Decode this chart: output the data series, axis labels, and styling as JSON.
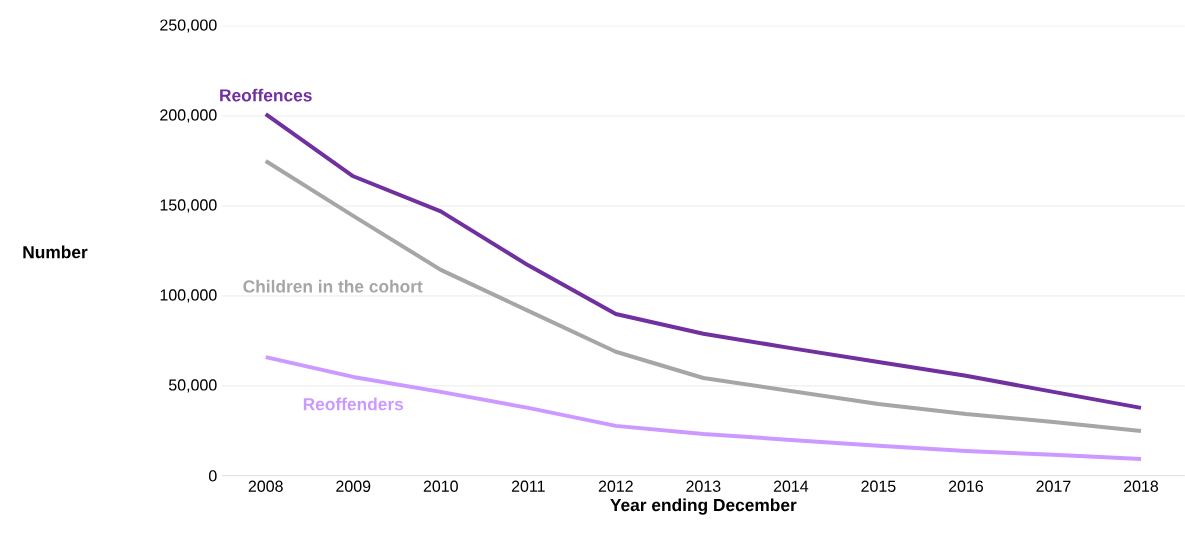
{
  "chart_data": {
    "type": "line",
    "xlabel": "Year ending December",
    "ylabel": "Number",
    "categories": [
      "2008",
      "2009",
      "2010",
      "2011",
      "2012",
      "2013",
      "2014",
      "2015",
      "2016",
      "2017",
      "2018"
    ],
    "series": [
      {
        "name": "Reoffences",
        "color": "#7030a0",
        "values": [
          201000,
          166500,
          147000,
          117000,
          90000,
          79000,
          71000,
          63300,
          55600,
          46700,
          37800
        ]
      },
      {
        "name": "Children in the cohort",
        "color": "#a6a6a6",
        "values": [
          175000,
          144500,
          114500,
          91700,
          69000,
          54400,
          47200,
          40000,
          34400,
          30000,
          25000
        ]
      },
      {
        "name": "Reoffenders",
        "color": "#cc99ff",
        "values": [
          66000,
          55000,
          46700,
          37800,
          27800,
          23300,
          20000,
          16700,
          13900,
          11700,
          9400
        ]
      }
    ],
    "ylim": [
      0,
      250000
    ],
    "yticks": [
      0,
      {
        "value": 50000,
        "label": "50,000"
      },
      {
        "value": 100000,
        "label": "100,000"
      },
      {
        "value": 150000,
        "label": "150,000"
      },
      {
        "value": 200000,
        "label": "200,000"
      },
      {
        "value": 250000,
        "label": "250,000"
      }
    ],
    "grid": "y",
    "marker": "none",
    "line_style": "solid"
  }
}
